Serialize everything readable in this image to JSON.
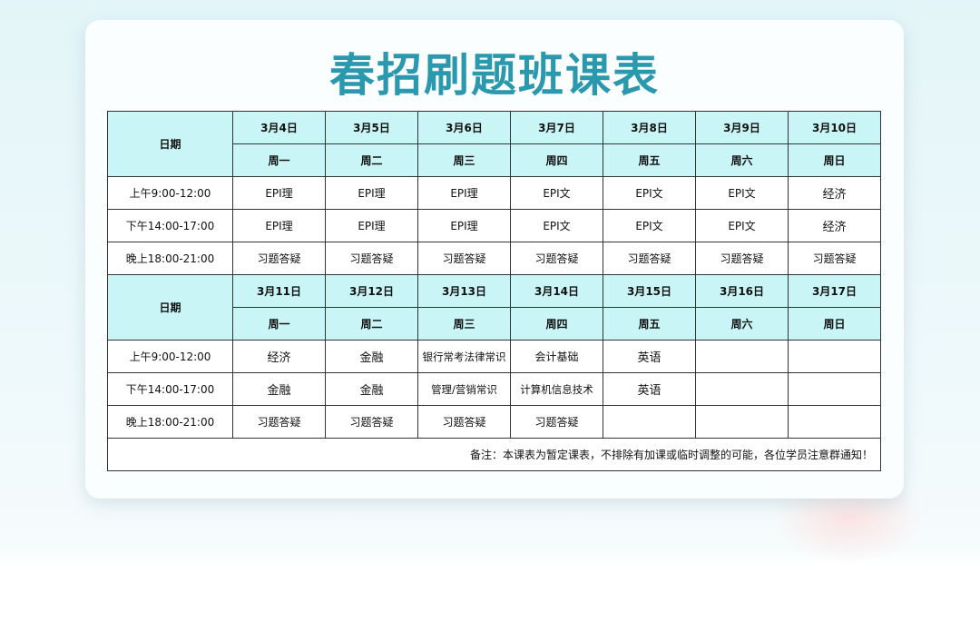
{
  "title": "春招刷题班课表",
  "date_label": "日期",
  "weeks": [
    {
      "dates": [
        "3月4日",
        "3月5日",
        "3月6日",
        "3月7日",
        "3月8日",
        "3月9日",
        "3月10日"
      ],
      "weekdays": [
        "周一",
        "周二",
        "周三",
        "周四",
        "周五",
        "周六",
        "周日"
      ],
      "rows": [
        {
          "time": "上午9:00-12:00",
          "cells": [
            "EPI理",
            "EPI理",
            "EPI理",
            "EPI文",
            "EPI文",
            "EPI文",
            "经济"
          ]
        },
        {
          "time": "下午14:00-17:00",
          "cells": [
            "EPI理",
            "EPI理",
            "EPI理",
            "EPI文",
            "EPI文",
            "EPI文",
            "经济"
          ]
        },
        {
          "time": "晚上18:00-21:00",
          "cells": [
            "习题答疑",
            "习题答疑",
            "习题答疑",
            "习题答疑",
            "习题答疑",
            "习题答疑",
            "习题答疑"
          ]
        }
      ]
    },
    {
      "dates": [
        "3月11日",
        "3月12日",
        "3月13日",
        "3月14日",
        "3月15日",
        "3月16日",
        "3月17日"
      ],
      "weekdays": [
        "周一",
        "周二",
        "周三",
        "周四",
        "周五",
        "周六",
        "周日"
      ],
      "rows": [
        {
          "time": "上午9:00-12:00",
          "cells": [
            "经济",
            "金融",
            "银行常考法律常识",
            "会计基础",
            "英语",
            "",
            ""
          ]
        },
        {
          "time": "下午14:00-17:00",
          "cells": [
            "金融",
            "金融",
            "管理/营销常识",
            "计算机信息技术",
            "英语",
            "",
            ""
          ]
        },
        {
          "time": "晚上18:00-21:00",
          "cells": [
            "习题答疑",
            "习题答疑",
            "习题答疑",
            "习题答疑",
            "",
            "",
            ""
          ]
        }
      ]
    }
  ],
  "note": "备注：本课表为暂定课表，不排除有加课或临时调整的可能，各位学员注意群通知！"
}
